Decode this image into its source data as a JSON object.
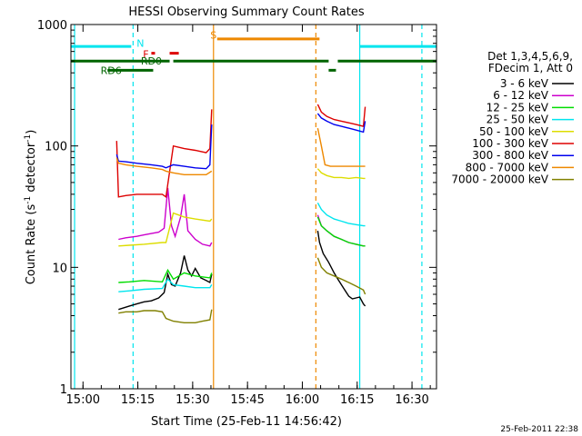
{
  "chart_data": {
    "type": "line",
    "title": "HESSI Observing Summary Count Rates",
    "xlabel": "Start Time (25-Feb-11 14:56:42)",
    "ylabel_prefix": "Count Rate (s",
    "ylabel_sup1": "-1",
    "ylabel_mid": " detector",
    "ylabel_sup2": "-1",
    "ylabel_suffix": ")",
    "y_scale": "log",
    "ylim": [
      1,
      1000
    ],
    "xlim_minutes": [
      0,
      100
    ],
    "x_ticks": [
      {
        "label": "15:00",
        "t": 3.3
      },
      {
        "label": "15:15",
        "t": 18.3
      },
      {
        "label": "15:30",
        "t": 33.3
      },
      {
        "label": "15:45",
        "t": 48.3
      },
      {
        "label": "16:00",
        "t": 63.3
      },
      {
        "label": "16:15",
        "t": 78.3
      },
      {
        "label": "16:30",
        "t": 93.3
      }
    ],
    "y_ticks": [
      {
        "label": "1",
        "v": 1
      },
      {
        "label": "10",
        "v": 10
      },
      {
        "label": "100",
        "v": 100
      },
      {
        "label": "1000",
        "v": 1000
      }
    ],
    "legend_header": [
      "Det 1,3,4,5,6,9,",
      "FDecim 1, Att 0"
    ],
    "series": [
      {
        "name": "3 - 6 keV",
        "color": "#000000",
        "segments": [
          [
            [
              13.0,
              4.5
            ],
            [
              14.0,
              4.6
            ],
            [
              16.0,
              4.8
            ],
            [
              18.0,
              5.0
            ],
            [
              20.0,
              5.2
            ],
            [
              22.0,
              5.3
            ],
            [
              24.0,
              5.6
            ],
            [
              25.5,
              6.2
            ],
            [
              26.5,
              8.8
            ],
            [
              27.5,
              7.2
            ],
            [
              28.5,
              7.0
            ],
            [
              30.0,
              9.0
            ],
            [
              31.0,
              12.5
            ],
            [
              32.0,
              9.5
            ],
            [
              33.0,
              8.5
            ],
            [
              34.0,
              9.8
            ],
            [
              35.5,
              8.2
            ],
            [
              37.0,
              7.8
            ],
            [
              38.0,
              7.5
            ],
            [
              38.5,
              8.8
            ]
          ],
          [
            [
              67.5,
              20.0
            ],
            [
              68.0,
              16.0
            ],
            [
              69.0,
              13.0
            ],
            [
              70.5,
              11.0
            ],
            [
              72.0,
              9.0
            ],
            [
              73.0,
              8.0
            ],
            [
              74.5,
              6.8
            ],
            [
              76.0,
              5.8
            ],
            [
              77.0,
              5.5
            ],
            [
              78.0,
              5.6
            ],
            [
              79.0,
              5.7
            ],
            [
              80.0,
              5.0
            ],
            [
              80.5,
              4.8
            ]
          ]
        ]
      },
      {
        "name": "6 - 12 keV",
        "color": "#cc00cc",
        "segments": [
          [
            [
              13.0,
              17.0
            ],
            [
              15.0,
              17.5
            ],
            [
              18.0,
              18.0
            ],
            [
              20.0,
              18.5
            ],
            [
              22.0,
              19.0
            ],
            [
              24.0,
              19.5
            ],
            [
              25.5,
              21.0
            ],
            [
              26.5,
              45.0
            ],
            [
              27.5,
              22.0
            ],
            [
              28.5,
              18.0
            ],
            [
              30.0,
              26.0
            ],
            [
              31.0,
              40.0
            ],
            [
              32.0,
              20.0
            ],
            [
              34.0,
              17.0
            ],
            [
              36.0,
              15.5
            ],
            [
              38.0,
              15.0
            ],
            [
              38.5,
              16.0
            ]
          ],
          [
            [
              67.5,
              27.0
            ],
            [
              68.5,
              22.0
            ],
            [
              70.0,
              20.0
            ],
            [
              72.0,
              18.0
            ],
            [
              74.0,
              17.0
            ],
            [
              76.0,
              16.0
            ],
            [
              78.0,
              15.5
            ],
            [
              80.0,
              15.0
            ],
            [
              80.5,
              15.0
            ]
          ]
        ]
      },
      {
        "name": "12 - 25 keV",
        "color": "#00dd00",
        "segments": [
          [
            [
              13.0,
              7.5
            ],
            [
              16.0,
              7.6
            ],
            [
              20.0,
              7.8
            ],
            [
              25.0,
              7.6
            ],
            [
              26.5,
              9.5
            ],
            [
              28.0,
              8.0
            ],
            [
              31.0,
              9.0
            ],
            [
              34.0,
              8.5
            ],
            [
              38.0,
              8.2
            ],
            [
              38.5,
              9.0
            ]
          ],
          [
            [
              67.5,
              26.0
            ],
            [
              68.5,
              22.0
            ],
            [
              70.0,
              20.0
            ],
            [
              72.0,
              18.0
            ],
            [
              74.0,
              17.0
            ],
            [
              76.0,
              16.0
            ],
            [
              78.0,
              15.5
            ],
            [
              80.0,
              15.0
            ],
            [
              80.5,
              15.0
            ]
          ]
        ]
      },
      {
        "name": "25 - 50 keV",
        "color": "#00e5ee",
        "segments": [
          [
            [
              13.0,
              6.3
            ],
            [
              16.0,
              6.4
            ],
            [
              20.0,
              6.6
            ],
            [
              25.0,
              6.7
            ],
            [
              26.5,
              8.0
            ],
            [
              28.0,
              7.2
            ],
            [
              31.0,
              7.0
            ],
            [
              34.0,
              6.8
            ],
            [
              38.0,
              6.8
            ],
            [
              38.5,
              7.2
            ]
          ],
          [
            [
              67.5,
              34.0
            ],
            [
              68.5,
              30.0
            ],
            [
              70.0,
              27.0
            ],
            [
              72.0,
              25.0
            ],
            [
              74.0,
              24.0
            ],
            [
              76.0,
              23.0
            ],
            [
              78.0,
              22.5
            ],
            [
              80.0,
              22.0
            ],
            [
              80.5,
              22.0
            ]
          ]
        ]
      },
      {
        "name": "50 - 100 keV",
        "color": "#dddd00",
        "segments": [
          [
            [
              13.0,
              15.0
            ],
            [
              16.0,
              15.2
            ],
            [
              20.0,
              15.5
            ],
            [
              25.0,
              16.0
            ],
            [
              26.0,
              16.0
            ],
            [
              28.0,
              28.0
            ],
            [
              31.0,
              26.0
            ],
            [
              34.0,
              25.0
            ],
            [
              38.0,
              24.0
            ],
            [
              38.5,
              25.0
            ]
          ],
          [
            [
              67.5,
              65.0
            ],
            [
              68.5,
              60.0
            ],
            [
              70.0,
              57.0
            ],
            [
              72.0,
              55.0
            ],
            [
              74.0,
              55.0
            ],
            [
              76.0,
              54.0
            ],
            [
              78.0,
              55.0
            ],
            [
              80.0,
              54.0
            ],
            [
              80.5,
              54.0
            ]
          ]
        ]
      },
      {
        "name": "100 - 300 keV",
        "color": "#dd0000",
        "segments": [
          [
            [
              12.5,
              110.0
            ],
            [
              13.0,
              38.0
            ],
            [
              15.0,
              39.0
            ],
            [
              18.0,
              40.0
            ],
            [
              22.0,
              40.0
            ],
            [
              25.0,
              40.0
            ],
            [
              26.0,
              38.0
            ],
            [
              28.0,
              100.0
            ],
            [
              31.0,
              95.0
            ],
            [
              34.0,
              92.0
            ],
            [
              37.0,
              88.0
            ],
            [
              38.0,
              95.0
            ],
            [
              38.5,
              200.0
            ]
          ],
          [
            [
              67.5,
              220.0
            ],
            [
              68.5,
              190.0
            ],
            [
              70.0,
              175.0
            ],
            [
              72.0,
              165.0
            ],
            [
              74.0,
              160.0
            ],
            [
              76.0,
              155.0
            ],
            [
              78.0,
              150.0
            ],
            [
              80.0,
              145.0
            ],
            [
              80.5,
              210.0
            ]
          ]
        ]
      },
      {
        "name": "300 - 800 keV",
        "color": "#0000ee",
        "segments": [
          [
            [
              12.5,
              85.0
            ],
            [
              13.0,
              75.0
            ],
            [
              15.0,
              74.0
            ],
            [
              18.0,
              72.0
            ],
            [
              22.0,
              70.0
            ],
            [
              25.0,
              68.0
            ],
            [
              26.0,
              66.0
            ],
            [
              28.0,
              70.0
            ],
            [
              31.0,
              68.0
            ],
            [
              34.0,
              66.0
            ],
            [
              37.0,
              65.0
            ],
            [
              38.0,
              70.0
            ],
            [
              38.5,
              150.0
            ]
          ],
          [
            [
              67.5,
              185.0
            ],
            [
              68.5,
              170.0
            ],
            [
              70.0,
              160.0
            ],
            [
              72.0,
              150.0
            ],
            [
              74.0,
              145.0
            ],
            [
              76.0,
              140.0
            ],
            [
              78.0,
              135.0
            ],
            [
              80.0,
              130.0
            ],
            [
              80.5,
              160.0
            ]
          ]
        ]
      },
      {
        "name": "800 - 7000 keV",
        "color": "#ee8800",
        "segments": [
          [
            [
              12.5,
              80.0
            ],
            [
              13.0,
              72.0
            ],
            [
              15.0,
              70.0
            ],
            [
              18.0,
              68.0
            ],
            [
              22.0,
              66.0
            ],
            [
              25.0,
              64.0
            ],
            [
              26.0,
              62.0
            ],
            [
              28.0,
              60.0
            ],
            [
              31.0,
              58.0
            ],
            [
              34.0,
              58.0
            ],
            [
              37.0,
              58.0
            ],
            [
              38.5,
              62.0
            ]
          ],
          [
            [
              67.5,
              140.0
            ],
            [
              68.5,
              100.0
            ],
            [
              69.5,
              70.0
            ],
            [
              71.0,
              68.0
            ],
            [
              73.0,
              68.0
            ],
            [
              75.0,
              68.0
            ],
            [
              77.0,
              68.0
            ],
            [
              79.0,
              68.0
            ],
            [
              80.5,
              68.0
            ]
          ]
        ]
      },
      {
        "name": "7000 - 20000 keV",
        "color": "#808000",
        "segments": [
          [
            [
              13.0,
              4.2
            ],
            [
              15.0,
              4.3
            ],
            [
              18.0,
              4.3
            ],
            [
              20.0,
              4.4
            ],
            [
              23.0,
              4.4
            ],
            [
              25.0,
              4.3
            ],
            [
              26.0,
              3.8
            ],
            [
              28.0,
              3.6
            ],
            [
              31.0,
              3.5
            ],
            [
              34.0,
              3.5
            ],
            [
              36.0,
              3.6
            ],
            [
              38.0,
              3.7
            ],
            [
              38.5,
              4.5
            ]
          ],
          [
            [
              67.5,
              12.0
            ],
            [
              68.5,
              10.0
            ],
            [
              70.0,
              9.0
            ],
            [
              72.0,
              8.5
            ],
            [
              74.0,
              8.0
            ],
            [
              76.0,
              7.5
            ],
            [
              78.0,
              7.0
            ],
            [
              80.0,
              6.5
            ],
            [
              80.5,
              6.0
            ]
          ]
        ]
      }
    ],
    "flags": [
      {
        "name": "N",
        "label_t": 19.0,
        "label_v": 700,
        "color": "#00e5ee",
        "y": 660,
        "spans": [
          [
            0.0,
            16.5
          ],
          [
            79.0,
            100.0
          ]
        ]
      },
      {
        "name": "F",
        "label_t": 20.5,
        "label_v": 570,
        "color": "#dd0000",
        "y": 580,
        "spans": [
          [
            22.0,
            23.0
          ],
          [
            27.0,
            29.5
          ]
        ]
      },
      {
        "name": "S",
        "label_t": 39.0,
        "label_v": 820,
        "color": "#ee8800",
        "y": 760,
        "spans": [
          [
            40.0,
            68.0
          ]
        ]
      },
      {
        "name": "RD0",
        "label_t": 22.0,
        "label_v": 500,
        "color": "#006400",
        "y": 500,
        "spans": [
          [
            0.0,
            27.0
          ],
          [
            28.0,
            70.5
          ],
          [
            73.0,
            100.0
          ]
        ]
      },
      {
        "name": "RD6",
        "label_t": 11.0,
        "label_v": 420,
        "color": "#006400",
        "y": 420,
        "spans": [
          [
            10.0,
            22.5
          ],
          [
            70.5,
            72.5
          ]
        ]
      }
    ],
    "vlines": [
      {
        "t": 1.0,
        "color": "#00e5ee",
        "style": "solid"
      },
      {
        "t": 17.0,
        "color": "#00e5ee",
        "style": "dashed"
      },
      {
        "t": 39.0,
        "color": "#ee8800",
        "style": "solid"
      },
      {
        "t": 67.0,
        "color": "#ee8800",
        "style": "dashed"
      },
      {
        "t": 79.0,
        "color": "#00e5ee",
        "style": "solid"
      },
      {
        "t": 96.0,
        "color": "#00e5ee",
        "style": "dashed"
      }
    ],
    "legend_position": "right"
  },
  "footer": {
    "timestamp": "25-Feb-2011 22:38"
  }
}
